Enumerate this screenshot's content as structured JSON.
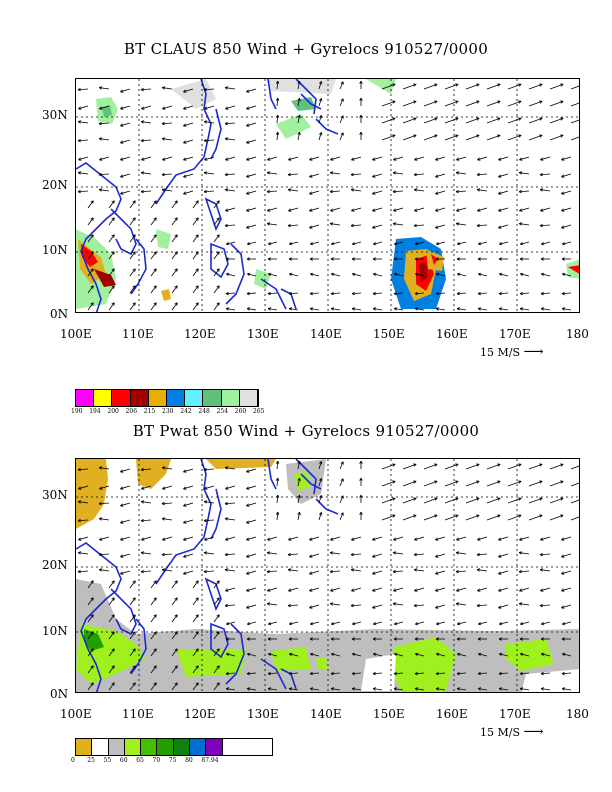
{
  "panel1": {
    "title": "BT CLAUS 850 Wind + Gyrelocs 910527/0000",
    "vector_ref": "15 M/S",
    "colorbar": {
      "colors": [
        "#ff00ff",
        "#ffff00",
        "#ff0000",
        "#a00000",
        "#e6b000",
        "#0080e0",
        "#60f0ff",
        "#60c080",
        "#a0f0a0",
        "#e0e0e0"
      ],
      "labels": [
        "190",
        "194",
        "200",
        "206",
        "215",
        "230",
        "242",
        "248",
        "254",
        "260",
        "265"
      ]
    }
  },
  "panel2": {
    "title": "BT Pwat 850 Wind + Gyrelocs 910527/0000",
    "vector_ref": "15 M/S",
    "colorbar": {
      "colors": [
        "#e0b020",
        "#ffffff",
        "#bebebe",
        "#a0f020",
        "#40c000",
        "#20a000",
        "#108010",
        "#0070d0",
        "#8000c0"
      ],
      "labels": [
        "0",
        "25",
        "55",
        "60",
        "65",
        "70",
        "75",
        "80",
        "87.94"
      ]
    }
  },
  "axes": {
    "lon_labels": [
      "100E",
      "110E",
      "120E",
      "130E",
      "140E",
      "150E",
      "160E",
      "170E",
      "180"
    ],
    "lat_labels": [
      "30N",
      "20N",
      "10N",
      "0N"
    ]
  }
}
